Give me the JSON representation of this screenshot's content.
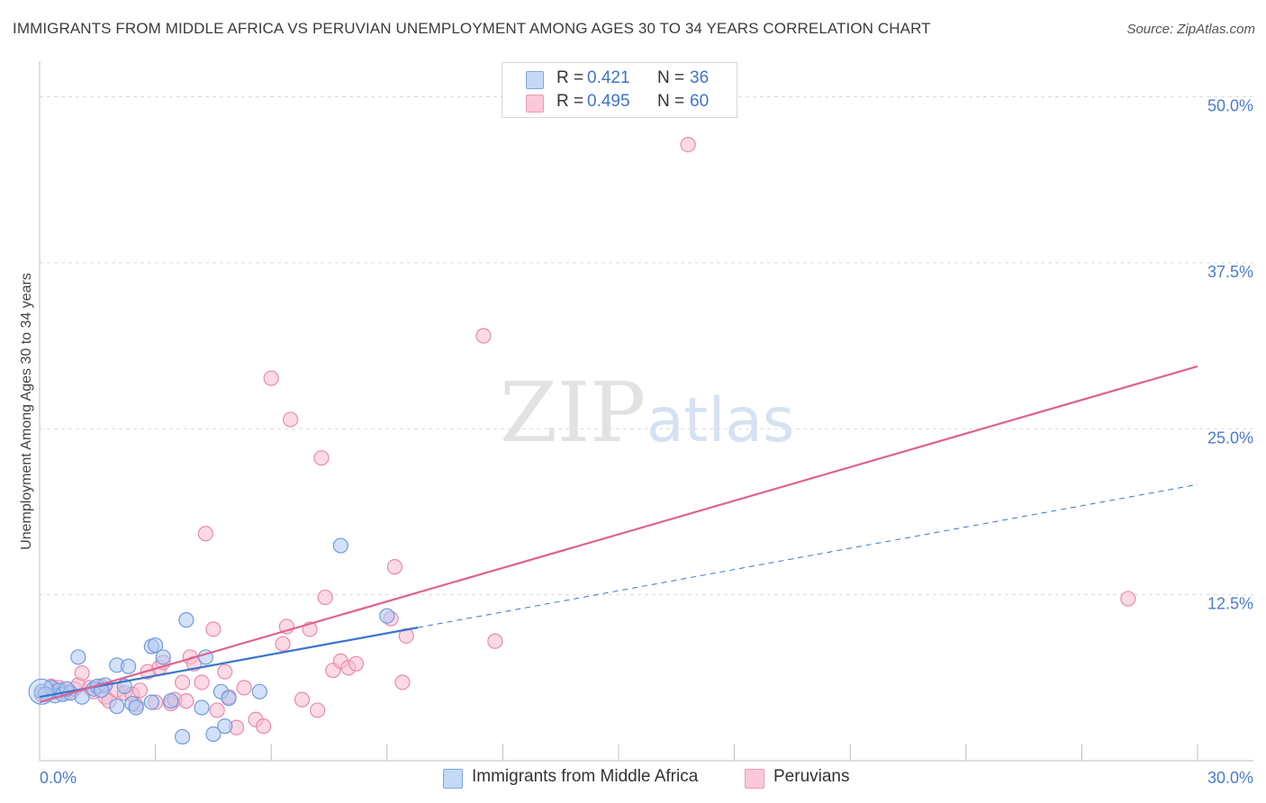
{
  "title": "IMMIGRANTS FROM MIDDLE AFRICA VS PERUVIAN UNEMPLOYMENT AMONG AGES 30 TO 34 YEARS CORRELATION CHART",
  "source": "Source: ZipAtlas.com",
  "watermark": {
    "zip": "ZIP",
    "atlas": "atlas"
  },
  "legend": {
    "rows": [
      {
        "r_label": "R =",
        "r_value": "0.421",
        "n_label": "N =",
        "n_value": "36"
      },
      {
        "r_label": "R =",
        "r_value": "0.495",
        "n_label": "N =",
        "n_value": "60"
      }
    ]
  },
  "bottom_legend": {
    "series1": "Immigrants from Middle Africa",
    "series2": "Peruvians"
  },
  "colors": {
    "blue_fill": "#aec9f2",
    "blue_stroke": "#6d9be0",
    "blue_line": "#3a74cf",
    "pink_fill": "#f7bcd0",
    "pink_stroke": "#e98aaa",
    "pink_line": "#e0628f",
    "tick_text": "#4a7bd0",
    "grid": "#dcdcdc"
  },
  "chart_data": {
    "type": "scatter",
    "title": "IMMIGRANTS FROM MIDDLE AFRICA VS PERUVIAN UNEMPLOYMENT AMONG AGES 30 TO 34 YEARS CORRELATION CHART",
    "xlabel": "",
    "ylabel": "Unemployment Among Ages 30 to 34 years",
    "xlim": [
      0,
      30
    ],
    "ylim": [
      0,
      52
    ],
    "x_tick_labels": [
      {
        "value": 0,
        "label": "0.0%"
      },
      {
        "value": 30,
        "label": "30.0%"
      }
    ],
    "y_tick_labels": [
      {
        "value": 12.5,
        "label": "12.5%"
      },
      {
        "value": 25,
        "label": "25.0%"
      },
      {
        "value": 37.5,
        "label": "37.5%"
      },
      {
        "value": 50,
        "label": "50.0%"
      }
    ],
    "x_minor_ticks": [
      3,
      6,
      9,
      12,
      15,
      18,
      21,
      24,
      27,
      30
    ],
    "series": [
      {
        "name": "Immigrants from Middle Africa",
        "color": "blue",
        "R": 0.421,
        "N": 36,
        "trend": {
          "x0": 0,
          "y0": 4.8,
          "x1": 30,
          "y1": 20.8,
          "solid_until": 9.8
        },
        "points": [
          [
            0.05,
            5.2
          ],
          [
            0.3,
            5.5
          ],
          [
            0.4,
            4.9
          ],
          [
            0.5,
            5.3
          ],
          [
            0.6,
            5.0
          ],
          [
            0.8,
            5.1
          ],
          [
            1.1,
            4.8
          ],
          [
            1.0,
            7.8
          ],
          [
            1.4,
            5.4
          ],
          [
            1.5,
            5.6
          ],
          [
            1.7,
            5.7
          ],
          [
            2.0,
            4.1
          ],
          [
            2.0,
            7.2
          ],
          [
            2.2,
            5.6
          ],
          [
            2.3,
            7.1
          ],
          [
            2.4,
            4.3
          ],
          [
            2.5,
            4.0
          ],
          [
            2.9,
            4.4
          ],
          [
            2.9,
            8.6
          ],
          [
            3.0,
            8.7
          ],
          [
            3.2,
            7.8
          ],
          [
            3.4,
            4.5
          ],
          [
            3.7,
            1.8
          ],
          [
            3.8,
            10.6
          ],
          [
            4.2,
            4.0
          ],
          [
            4.3,
            7.8
          ],
          [
            4.5,
            2.0
          ],
          [
            4.7,
            5.2
          ],
          [
            4.8,
            2.6
          ],
          [
            4.9,
            4.7
          ],
          [
            5.7,
            5.2
          ],
          [
            7.8,
            16.2
          ],
          [
            9.0,
            10.9
          ],
          [
            0.15,
            5.0
          ],
          [
            0.7,
            5.4
          ],
          [
            1.6,
            5.3
          ]
        ]
      },
      {
        "name": "Peruvians",
        "color": "pink",
        "R": 0.495,
        "N": 60,
        "trend": {
          "x0": 0,
          "y0": 4.4,
          "x1": 30,
          "y1": 29.7
        },
        "points": [
          [
            0.05,
            5.0
          ],
          [
            0.3,
            5.6
          ],
          [
            0.4,
            5.2
          ],
          [
            0.5,
            5.5
          ],
          [
            0.6,
            5.3
          ],
          [
            0.7,
            5.1
          ],
          [
            0.9,
            5.4
          ],
          [
            1.0,
            5.7
          ],
          [
            1.1,
            6.6
          ],
          [
            1.3,
            5.5
          ],
          [
            1.4,
            5.2
          ],
          [
            1.6,
            5.6
          ],
          [
            1.7,
            4.8
          ],
          [
            1.8,
            4.5
          ],
          [
            2.0,
            5.3
          ],
          [
            2.2,
            5.1
          ],
          [
            2.4,
            5.0
          ],
          [
            2.5,
            4.2
          ],
          [
            2.6,
            5.3
          ],
          [
            2.8,
            6.7
          ],
          [
            3.0,
            4.4
          ],
          [
            3.1,
            7.0
          ],
          [
            3.2,
            7.4
          ],
          [
            3.4,
            4.3
          ],
          [
            3.5,
            4.6
          ],
          [
            3.7,
            5.9
          ],
          [
            3.8,
            4.5
          ],
          [
            3.9,
            7.8
          ],
          [
            4.0,
            7.3
          ],
          [
            4.2,
            5.9
          ],
          [
            4.3,
            17.1
          ],
          [
            4.5,
            9.9
          ],
          [
            4.6,
            3.8
          ],
          [
            4.8,
            6.7
          ],
          [
            4.9,
            4.8
          ],
          [
            5.1,
            2.5
          ],
          [
            5.3,
            5.5
          ],
          [
            5.6,
            3.1
          ],
          [
            5.8,
            2.6
          ],
          [
            6.0,
            28.8
          ],
          [
            6.3,
            8.8
          ],
          [
            6.4,
            10.1
          ],
          [
            6.5,
            25.7
          ],
          [
            6.8,
            4.6
          ],
          [
            7.0,
            9.9
          ],
          [
            7.2,
            3.8
          ],
          [
            7.3,
            22.8
          ],
          [
            7.4,
            12.3
          ],
          [
            7.6,
            6.8
          ],
          [
            7.8,
            7.5
          ],
          [
            8.0,
            7.0
          ],
          [
            8.2,
            7.3
          ],
          [
            9.2,
            14.6
          ],
          [
            9.4,
            5.9
          ],
          [
            9.5,
            9.4
          ],
          [
            11.5,
            32.0
          ],
          [
            11.8,
            9.0
          ],
          [
            16.8,
            46.4
          ],
          [
            28.2,
            12.2
          ],
          [
            9.1,
            10.7
          ]
        ]
      }
    ]
  }
}
